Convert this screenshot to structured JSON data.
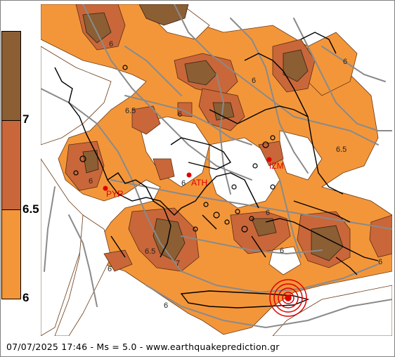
{
  "legend": {
    "levels": [
      {
        "label": "7",
        "color": "#8b5e34"
      },
      {
        "label": "6.5",
        "color": "#c9673a"
      },
      {
        "label": "6",
        "color": "#f3963a"
      }
    ],
    "top_color": "#8b5e34"
  },
  "cities": [
    {
      "code": "ATH"
    },
    {
      "code": "IZM"
    },
    {
      "code": "PYR"
    }
  ],
  "contour_labels": [
    "6",
    "6",
    "6.5",
    "6",
    "6.5",
    "6",
    "6",
    "6",
    "6.5",
    "6",
    "6",
    "6",
    "7",
    "6",
    "6"
  ],
  "epicenter": {
    "color": "#e00000"
  },
  "footer": {
    "date": "07/07/2025 17:46",
    "magnitude": "Ms = 5.0",
    "site": "www.earthquakeprediction.gr"
  }
}
